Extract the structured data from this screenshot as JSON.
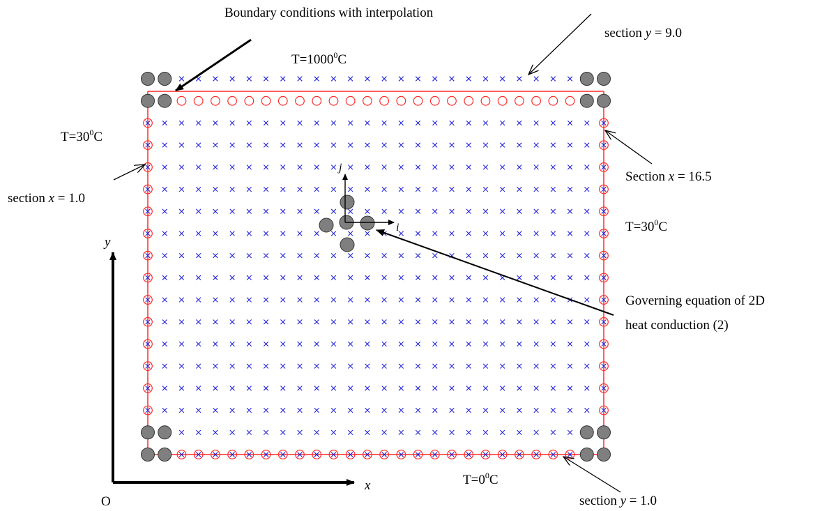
{
  "labels": {
    "boundary_interpolation": "Boundary conditions with interpolation",
    "section_y9": {
      "prefix": "section ",
      "var": "y",
      "suffix": " = 9.0"
    },
    "top_temp": {
      "base": "T=1000",
      "sup": "0",
      "unit": "C"
    },
    "left_temp": {
      "base": "T=30",
      "sup": "0",
      "unit": "C"
    },
    "right_temp": {
      "base": "T=30",
      "sup": "0",
      "unit": "C"
    },
    "bottom_temp": {
      "base": "T=0",
      "sup": "0",
      "unit": "C"
    },
    "section_x1": {
      "prefix": "section ",
      "var": "x",
      "suffix": " = 1.0"
    },
    "section_x165": {
      "prefix": "Section ",
      "var": "x",
      "suffix": " = 16.5"
    },
    "section_y1": {
      "prefix": "section ",
      "var": "y",
      "suffix": " = 1.0"
    },
    "governing_line1": "Governing equation of 2D",
    "governing_line2": "heat conduction (2)",
    "axis_x": "x",
    "axis_y": "y",
    "origin": "O",
    "stencil_i": "i",
    "stencil_j": "j"
  },
  "grid": {
    "columns": 28,
    "rows": 18,
    "interior_marker": "cross",
    "boundary_marker": "circle",
    "corner_marker": "filled-circle"
  },
  "colors": {
    "interior": "#2323dc",
    "boundary": "#ff2a2a",
    "node_fill": "#7f7f7f",
    "node_stroke": "#333333",
    "arrow": "#000000"
  }
}
